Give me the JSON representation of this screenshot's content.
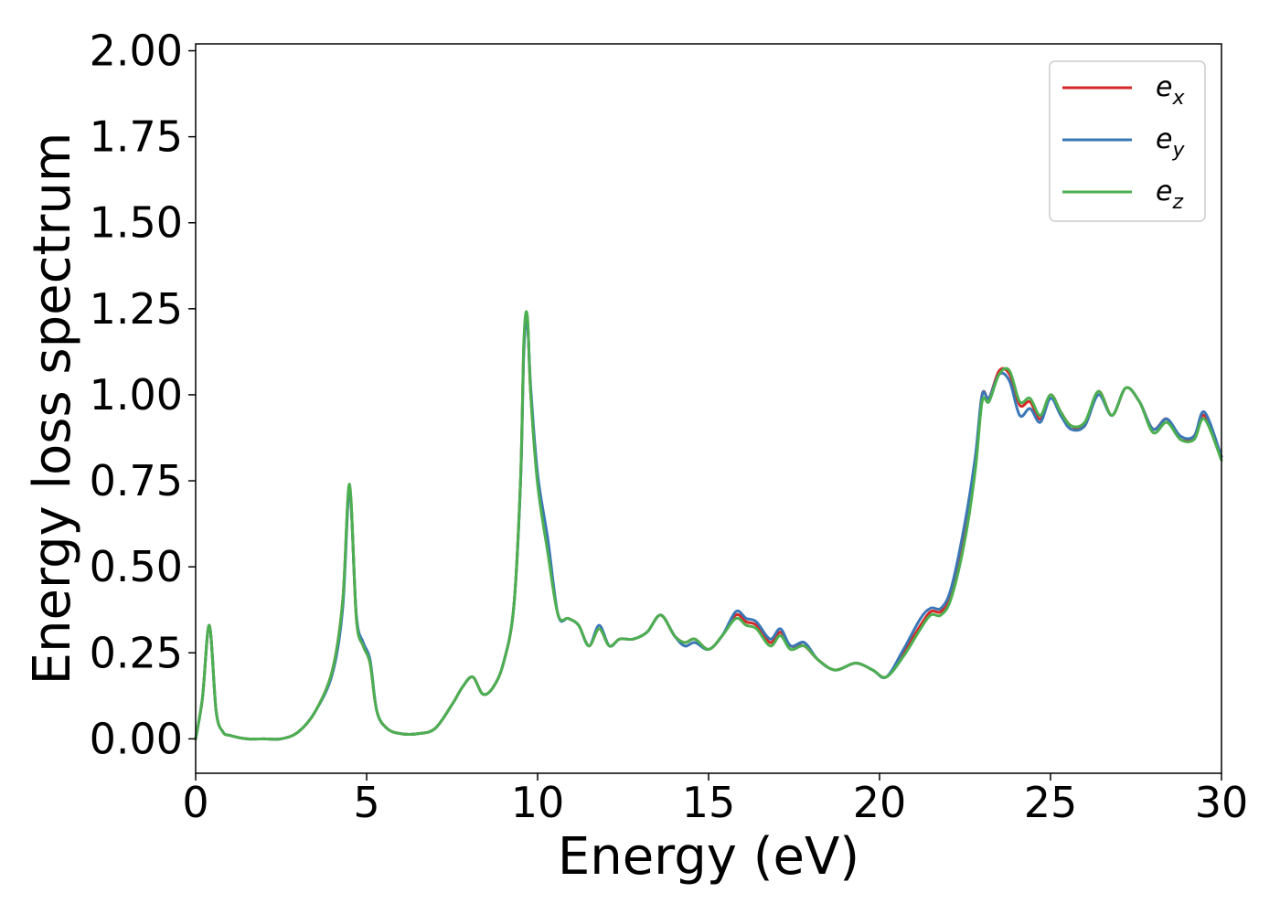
{
  "chart_data": {
    "type": "line",
    "title": "",
    "xlabel": "Energy (eV)",
    "ylabel": "Energy loss spectrum",
    "xlim": [
      0,
      30
    ],
    "ylim": [
      -0.1,
      2.02
    ],
    "xticks": [
      0,
      5,
      10,
      15,
      20,
      25,
      30
    ],
    "xtick_labels": [
      "0",
      "5",
      "10",
      "15",
      "20",
      "25",
      "30"
    ],
    "yticks": [
      0,
      0.25,
      0.5,
      0.75,
      1.0,
      1.25,
      1.5,
      1.75,
      2.0
    ],
    "ytick_labels": [
      "0.00",
      "0.25",
      "0.50",
      "0.75",
      "1.00",
      "1.25",
      "1.50",
      "1.75",
      "2.00"
    ],
    "grid": false,
    "legend_position": "top-right",
    "x": [
      0,
      0.2,
      0.4,
      0.6,
      0.8,
      1.0,
      1.5,
      2.0,
      2.5,
      3.0,
      3.5,
      4.0,
      4.3,
      4.5,
      4.7,
      4.9,
      5.1,
      5.3,
      5.6,
      6.0,
      6.5,
      7.0,
      7.5,
      7.8,
      8.1,
      8.4,
      8.7,
      9.0,
      9.3,
      9.5,
      9.6,
      9.7,
      9.8,
      10.0,
      10.3,
      10.6,
      10.9,
      11.2,
      11.5,
      11.8,
      12.1,
      12.4,
      12.8,
      13.2,
      13.6,
      14.0,
      14.3,
      14.6,
      15.0,
      15.4,
      15.8,
      16.1,
      16.4,
      16.8,
      17.1,
      17.4,
      17.8,
      18.2,
      18.7,
      19.3,
      19.8,
      20.2,
      20.7,
      21.2,
      21.5,
      21.8,
      22.1,
      22.5,
      22.8,
      23.0,
      23.2,
      23.5,
      23.8,
      24.1,
      24.4,
      24.7,
      25.0,
      25.3,
      25.6,
      26.0,
      26.4,
      26.8,
      27.2,
      27.6,
      28.0,
      28.4,
      28.8,
      29.2,
      29.5,
      30.0
    ],
    "series": [
      {
        "name": "e",
        "subscript": "x",
        "color": "#d62728",
        "values": [
          0.0,
          0.12,
          0.33,
          0.08,
          0.02,
          0.01,
          0.0,
          0.0,
          0.0,
          0.02,
          0.08,
          0.2,
          0.4,
          0.73,
          0.35,
          0.27,
          0.22,
          0.08,
          0.03,
          0.015,
          0.015,
          0.03,
          0.1,
          0.15,
          0.18,
          0.13,
          0.15,
          0.22,
          0.38,
          0.75,
          1.15,
          1.22,
          1.0,
          0.75,
          0.55,
          0.36,
          0.35,
          0.33,
          0.27,
          0.32,
          0.27,
          0.29,
          0.29,
          0.31,
          0.36,
          0.3,
          0.28,
          0.29,
          0.26,
          0.3,
          0.36,
          0.34,
          0.33,
          0.28,
          0.31,
          0.27,
          0.27,
          0.23,
          0.2,
          0.22,
          0.2,
          0.18,
          0.25,
          0.33,
          0.37,
          0.37,
          0.42,
          0.6,
          0.8,
          1.0,
          0.99,
          1.07,
          1.06,
          0.97,
          0.98,
          0.93,
          1.0,
          0.95,
          0.91,
          0.91,
          1.01,
          0.94,
          1.02,
          0.98,
          0.9,
          0.93,
          0.87,
          0.88,
          0.94,
          0.82
        ]
      },
      {
        "name": "e",
        "subscript": "y",
        "color": "#3a77b6",
        "values": [
          0.0,
          0.12,
          0.33,
          0.08,
          0.02,
          0.01,
          0.0,
          0.0,
          0.0,
          0.02,
          0.08,
          0.19,
          0.38,
          0.72,
          0.36,
          0.28,
          0.23,
          0.08,
          0.03,
          0.015,
          0.015,
          0.03,
          0.1,
          0.15,
          0.18,
          0.13,
          0.15,
          0.22,
          0.38,
          0.74,
          1.13,
          1.21,
          1.02,
          0.77,
          0.58,
          0.36,
          0.35,
          0.33,
          0.27,
          0.33,
          0.27,
          0.29,
          0.29,
          0.31,
          0.36,
          0.3,
          0.27,
          0.28,
          0.26,
          0.3,
          0.37,
          0.35,
          0.34,
          0.29,
          0.32,
          0.27,
          0.28,
          0.23,
          0.2,
          0.22,
          0.2,
          0.18,
          0.26,
          0.35,
          0.38,
          0.38,
          0.44,
          0.63,
          0.82,
          1.0,
          0.99,
          1.06,
          1.04,
          0.94,
          0.96,
          0.92,
          0.99,
          0.94,
          0.9,
          0.91,
          1.0,
          0.94,
          1.02,
          0.98,
          0.9,
          0.93,
          0.88,
          0.88,
          0.95,
          0.82
        ]
      },
      {
        "name": "e",
        "subscript": "z",
        "color": "#4caf50",
        "values": [
          0.0,
          0.12,
          0.33,
          0.08,
          0.02,
          0.01,
          0.0,
          0.0,
          0.0,
          0.02,
          0.08,
          0.2,
          0.4,
          0.74,
          0.35,
          0.27,
          0.22,
          0.08,
          0.03,
          0.015,
          0.015,
          0.03,
          0.1,
          0.15,
          0.18,
          0.13,
          0.15,
          0.22,
          0.38,
          0.75,
          1.16,
          1.23,
          1.0,
          0.74,
          0.54,
          0.36,
          0.35,
          0.33,
          0.27,
          0.32,
          0.27,
          0.29,
          0.29,
          0.31,
          0.36,
          0.3,
          0.28,
          0.29,
          0.26,
          0.3,
          0.35,
          0.33,
          0.32,
          0.27,
          0.3,
          0.26,
          0.27,
          0.23,
          0.2,
          0.22,
          0.2,
          0.18,
          0.24,
          0.32,
          0.36,
          0.36,
          0.41,
          0.58,
          0.78,
          0.98,
          0.98,
          1.06,
          1.07,
          0.98,
          0.99,
          0.94,
          1.0,
          0.95,
          0.91,
          0.92,
          1.01,
          0.94,
          1.02,
          0.98,
          0.89,
          0.92,
          0.87,
          0.87,
          0.93,
          0.81
        ]
      }
    ]
  }
}
